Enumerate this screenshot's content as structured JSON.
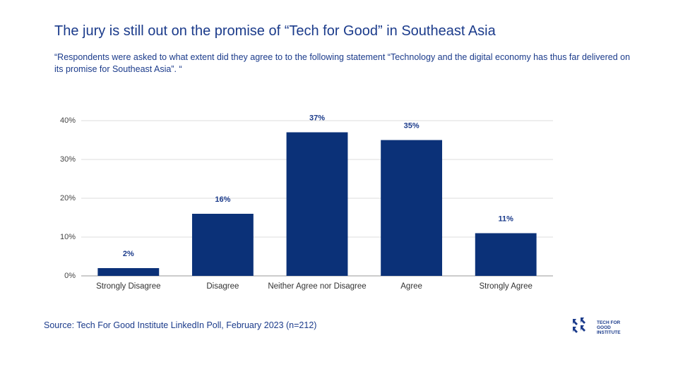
{
  "chart_data": {
    "type": "bar",
    "title": "The jury is still out on the promise of “Tech for Good” in Southeast Asia",
    "subtitle": "“Respondents were asked to what extent did they agree to to the following statement  “Technology and the digital economy has thus far delivered on its promise for Southeast Asia”. “",
    "categories": [
      "Strongly Disagree",
      "Disagree",
      "Neither Agree nor Disagree",
      "Agree",
      "Strongly Agree"
    ],
    "values": [
      2,
      16,
      37,
      35,
      11
    ],
    "value_labels": [
      "2%",
      "16%",
      "37%",
      "35%",
      "11%"
    ],
    "color": "#0b3178",
    "ylim": [
      0,
      40
    ],
    "yticks": [
      {
        "value": 0,
        "label": "0%"
      },
      {
        "value": 10,
        "label": "10%"
      },
      {
        "value": 20,
        "label": "20%"
      },
      {
        "value": 30,
        "label": "30%"
      },
      {
        "value": 40,
        "label": "40%"
      }
    ],
    "grid": true,
    "source": "Source: Tech For Good Institute LinkedIn Poll, February 2023 (n=212)"
  },
  "logo": {
    "lines": [
      "TECH FOR",
      "GOOD",
      "INSTITUTE"
    ]
  }
}
